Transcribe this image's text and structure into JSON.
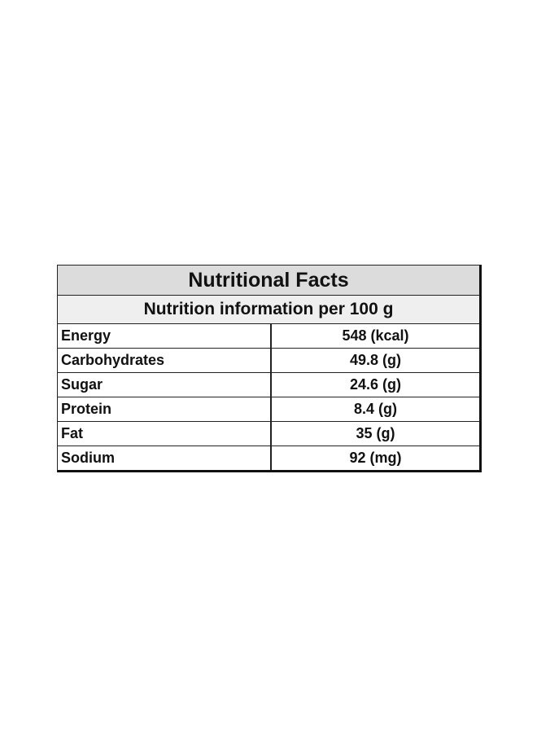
{
  "table": {
    "title": "Nutritional Facts",
    "subtitle": "Nutrition information per 100 g",
    "rows": [
      [
        "Energy",
        "548 (kcal)"
      ],
      [
        "Carbohydrates",
        "49.8 (g)"
      ],
      [
        "Sugar",
        "24.6 (g)"
      ],
      [
        "Protein",
        "8.4 (g)"
      ],
      [
        "Fat",
        "35 (g)"
      ],
      [
        "Sodium",
        "92 (mg)"
      ]
    ]
  }
}
